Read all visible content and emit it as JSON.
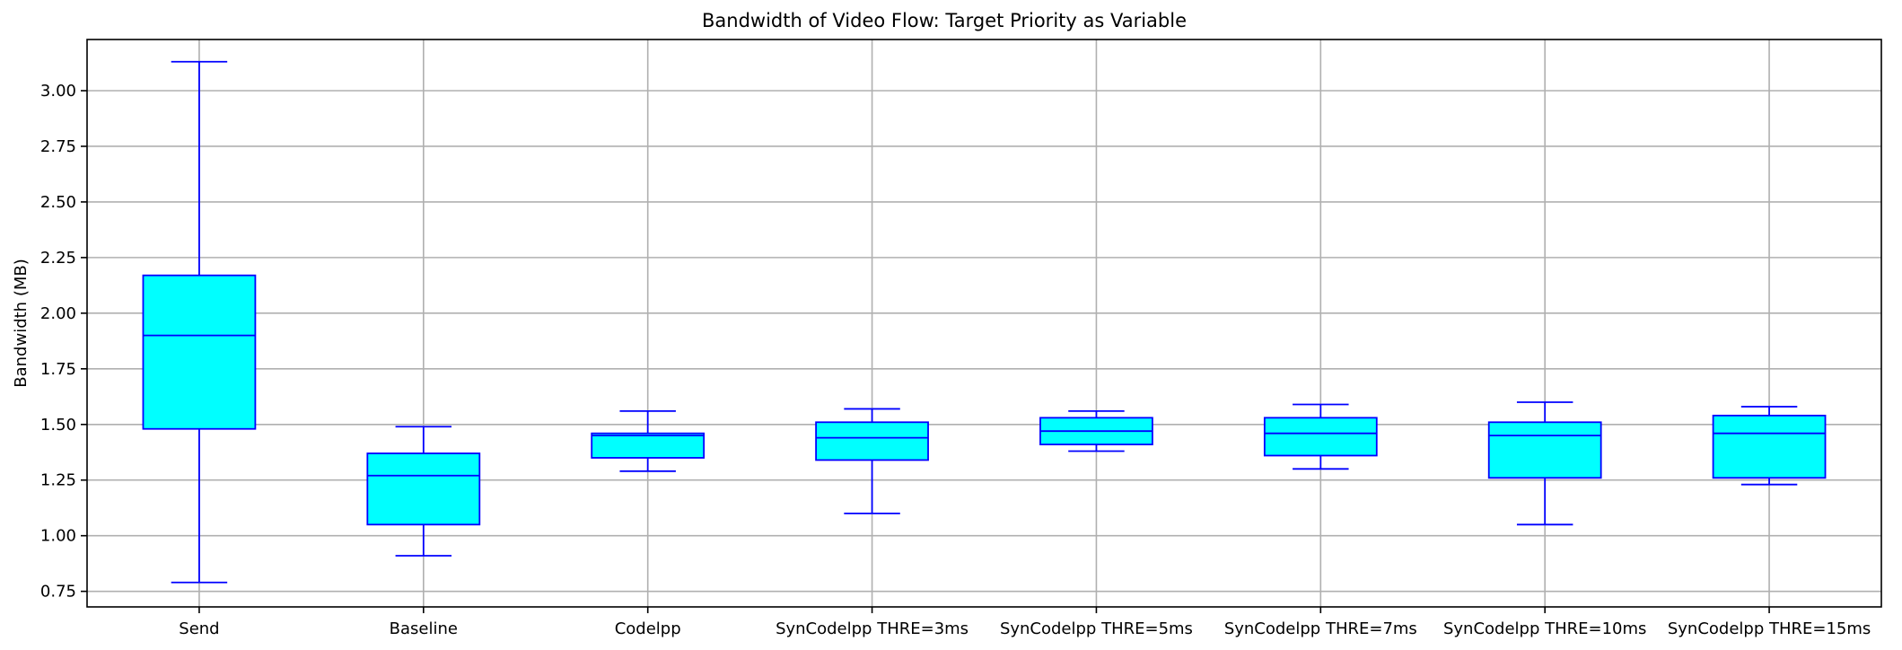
{
  "chart_data": {
    "type": "boxplot",
    "title": "Bandwidth of Video Flow: Target Priority as Variable",
    "xlabel": "",
    "ylabel": "Bandwidth (MB)",
    "ylim": [
      0.68,
      3.23
    ],
    "yticks": [
      0.75,
      1.0,
      1.25,
      1.5,
      1.75,
      2.0,
      2.25,
      2.5,
      2.75,
      3.0
    ],
    "ytick_labels": [
      "0.75",
      "1.00",
      "1.25",
      "1.50",
      "1.75",
      "2.00",
      "2.25",
      "2.50",
      "2.75",
      "3.00"
    ],
    "grid": true,
    "categories": [
      "Send",
      "Baseline",
      "Codelpp",
      "SynCodelpp THRE=3ms",
      "SynCodelpp THRE=5ms",
      "SynCodelpp THRE=7ms",
      "SynCodelpp THRE=10ms",
      "SynCodelpp THRE=15ms"
    ],
    "boxes": [
      {
        "whisker_low": 0.79,
        "q1": 1.48,
        "median": 1.9,
        "q3": 2.17,
        "whisker_high": 3.13
      },
      {
        "whisker_low": 0.91,
        "q1": 1.05,
        "median": 1.27,
        "q3": 1.37,
        "whisker_high": 1.49
      },
      {
        "whisker_low": 1.29,
        "q1": 1.35,
        "median": 1.45,
        "q3": 1.46,
        "whisker_high": 1.56
      },
      {
        "whisker_low": 1.1,
        "q1": 1.34,
        "median": 1.44,
        "q3": 1.51,
        "whisker_high": 1.57
      },
      {
        "whisker_low": 1.38,
        "q1": 1.41,
        "median": 1.47,
        "q3": 1.53,
        "whisker_high": 1.56
      },
      {
        "whisker_low": 1.3,
        "q1": 1.36,
        "median": 1.46,
        "q3": 1.53,
        "whisker_high": 1.59
      },
      {
        "whisker_low": 1.05,
        "q1": 1.26,
        "median": 1.45,
        "q3": 1.51,
        "whisker_high": 1.6
      },
      {
        "whisker_low": 1.23,
        "q1": 1.26,
        "median": 1.46,
        "q3": 1.54,
        "whisker_high": 1.58
      }
    ],
    "colors": {
      "box_fill": "#00ffff",
      "box_edge": "#0000ff",
      "grid": "#b0b0b0",
      "axis": "#000000"
    }
  }
}
